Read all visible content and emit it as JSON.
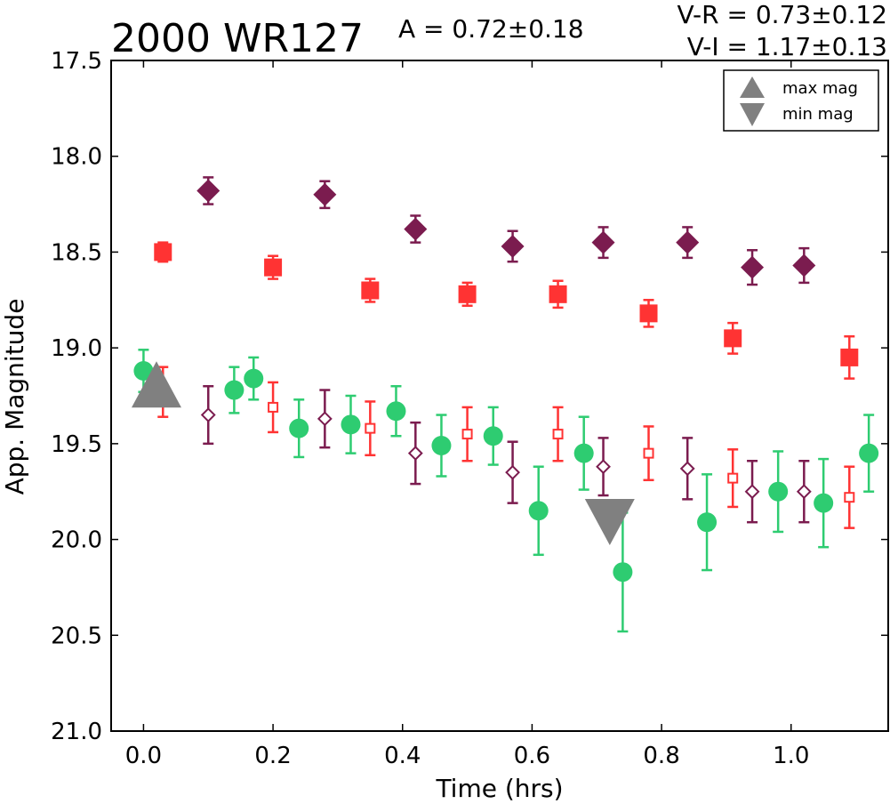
{
  "header": {
    "title": "2000 WR127",
    "amplitude": "A  = 0.72±0.18",
    "color_vr": "V-R = 0.73±0.12",
    "color_vi": "V-I  = 1.17±0.13"
  },
  "legend": {
    "max_label": "max mag",
    "min_label": "min mag",
    "position": "top-right"
  },
  "chart_data": {
    "type": "scatter",
    "title": "2000 WR127",
    "xlabel": "Time (hrs)",
    "ylabel": "App. Magnitude",
    "xlim": [
      -0.05,
      1.15
    ],
    "ylim": [
      21.0,
      17.5
    ],
    "y_inverted": true,
    "x_ticks": [
      0.0,
      0.2,
      0.4,
      0.6,
      0.8,
      1.0
    ],
    "x_tick_labels": [
      "0.0",
      "0.2",
      "0.4",
      "0.6",
      "0.8",
      "1.0"
    ],
    "y_ticks": [
      17.5,
      18.0,
      18.5,
      19.0,
      19.5,
      20.0,
      20.5,
      21.0
    ],
    "y_tick_labels": [
      "17.5",
      "18.0",
      "18.5",
      "19.0",
      "19.5",
      "20.0",
      "20.5",
      "21.0"
    ],
    "grid": false,
    "colors": {
      "green": "#2ecc71",
      "red": "#ff3333",
      "purple": "#7b1c4f",
      "marker_gray": "#808080"
    },
    "series": [
      {
        "marker": "square-filled",
        "color": "#ff3333",
        "x": [
          0.03,
          0.2,
          0.35,
          0.5,
          0.64,
          0.78,
          0.91,
          1.09
        ],
        "y": [
          18.5,
          18.58,
          18.7,
          18.72,
          18.72,
          18.82,
          18.95,
          19.05
        ],
        "yerr": [
          0.05,
          0.06,
          0.06,
          0.06,
          0.07,
          0.07,
          0.08,
          0.11
        ]
      },
      {
        "marker": "diamond-filled",
        "color": "#7b1c4f",
        "x": [
          0.1,
          0.28,
          0.42,
          0.57,
          0.71,
          0.84,
          0.94,
          1.02
        ],
        "y": [
          18.18,
          18.2,
          18.38,
          18.47,
          18.45,
          18.45,
          18.58,
          18.57
        ],
        "yerr": [
          0.07,
          0.07,
          0.07,
          0.08,
          0.08,
          0.08,
          0.09,
          0.09
        ]
      },
      {
        "marker": "circle-filled",
        "color": "#2ecc71",
        "x": [
          0.0,
          0.14,
          0.17,
          0.24,
          0.32,
          0.39,
          0.46,
          0.54,
          0.61,
          0.68,
          0.74,
          0.87,
          0.98,
          1.05,
          1.12
        ],
        "y": [
          19.12,
          19.22,
          19.16,
          19.42,
          19.4,
          19.33,
          19.51,
          19.46,
          19.85,
          19.55,
          20.17,
          19.91,
          19.75,
          19.81,
          19.55
        ],
        "yerr": [
          0.11,
          0.12,
          0.11,
          0.15,
          0.15,
          0.13,
          0.16,
          0.15,
          0.23,
          0.19,
          0.31,
          0.25,
          0.21,
          0.23,
          0.2
        ]
      },
      {
        "marker": "square-open",
        "color": "#ff3333",
        "x": [
          0.03,
          0.2,
          0.35,
          0.5,
          0.64,
          0.78,
          0.91,
          1.09
        ],
        "y": [
          19.23,
          19.31,
          19.42,
          19.45,
          19.45,
          19.55,
          19.68,
          19.78
        ],
        "yerr": [
          0.13,
          0.13,
          0.14,
          0.14,
          0.14,
          0.14,
          0.15,
          0.16
        ]
      },
      {
        "marker": "diamond-open",
        "color": "#7b1c4f",
        "x": [
          0.1,
          0.28,
          0.42,
          0.57,
          0.71,
          0.84,
          0.94,
          1.02
        ],
        "y": [
          19.35,
          19.37,
          19.55,
          19.65,
          19.62,
          19.63,
          19.75,
          19.75
        ],
        "yerr": [
          0.15,
          0.15,
          0.16,
          0.16,
          0.15,
          0.16,
          0.16,
          0.16
        ]
      }
    ],
    "extrema": {
      "max_mag": {
        "x": 0.02,
        "y": 19.2
      },
      "min_mag": {
        "x": 0.72,
        "y": 19.9
      }
    }
  }
}
